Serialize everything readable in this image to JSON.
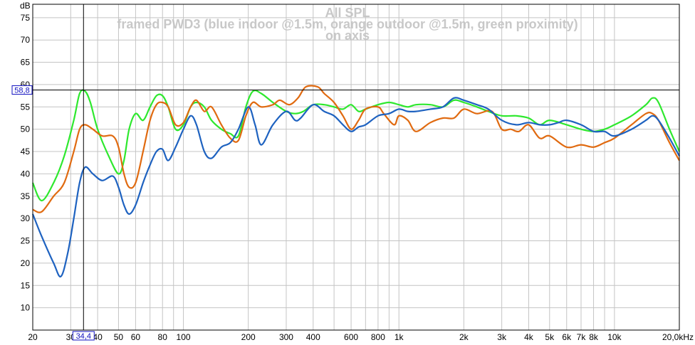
{
  "chart_data": {
    "type": "line",
    "title_lines": [
      "All SPL",
      "framed PWD3 (blue indoor @1.5m, orange outdoor @1.5m, green proximity)",
      "on axis"
    ],
    "y_unit": "dB",
    "x_unit_label": "20,0kHz",
    "x_scale": "log",
    "xlim": [
      20,
      20000
    ],
    "ylim": [
      5,
      78
    ],
    "grid": true,
    "y_ticks": [
      10,
      15,
      20,
      25,
      30,
      35,
      40,
      45,
      50,
      55,
      60,
      65,
      70,
      75
    ],
    "x_tick_labels": [
      {
        "value": 20,
        "label": "20"
      },
      {
        "value": 30,
        "label": "30"
      },
      {
        "value": 40,
        "label": "40"
      },
      {
        "value": 50,
        "label": "50"
      },
      {
        "value": 60,
        "label": "60"
      },
      {
        "value": 80,
        "label": "80"
      },
      {
        "value": 100,
        "label": "100"
      },
      {
        "value": 200,
        "label": "200"
      },
      {
        "value": 300,
        "label": "300"
      },
      {
        "value": 400,
        "label": "400"
      },
      {
        "value": 600,
        "label": "600"
      },
      {
        "value": 800,
        "label": "800"
      },
      {
        "value": 1000,
        "label": "1k"
      },
      {
        "value": 2000,
        "label": "2k"
      },
      {
        "value": 3000,
        "label": "3k"
      },
      {
        "value": 4000,
        "label": "4k"
      },
      {
        "value": 5000,
        "label": "5k"
      },
      {
        "value": 6000,
        "label": "6k"
      },
      {
        "value": 7000,
        "label": "7k"
      },
      {
        "value": 8000,
        "label": "8k"
      },
      {
        "value": 10000,
        "label": "10k"
      }
    ],
    "cursor": {
      "x": 34.4,
      "y": 58.8,
      "x_label": "34,4",
      "y_label": "58,8"
    },
    "series": [
      {
        "color": "#2ee82e",
        "points": [
          [
            20,
            38
          ],
          [
            22,
            34
          ],
          [
            25,
            38
          ],
          [
            28,
            44
          ],
          [
            31,
            52
          ],
          [
            33,
            58
          ],
          [
            35,
            58.5
          ],
          [
            37,
            56
          ],
          [
            40,
            50
          ],
          [
            45,
            44
          ],
          [
            50,
            40
          ],
          [
            53,
            43
          ],
          [
            56,
            50
          ],
          [
            60,
            53.5
          ],
          [
            65,
            52
          ],
          [
            70,
            55
          ],
          [
            75,
            57.5
          ],
          [
            80,
            57.5
          ],
          [
            85,
            55
          ],
          [
            92,
            50
          ],
          [
            100,
            51
          ],
          [
            108,
            55
          ],
          [
            115,
            56
          ],
          [
            125,
            55
          ],
          [
            135,
            52
          ],
          [
            150,
            50
          ],
          [
            165,
            49
          ],
          [
            180,
            48.5
          ],
          [
            195,
            55
          ],
          [
            210,
            58.5
          ],
          [
            230,
            58
          ],
          [
            260,
            56
          ],
          [
            300,
            54
          ],
          [
            330,
            53.5
          ],
          [
            360,
            54
          ],
          [
            400,
            55.5
          ],
          [
            450,
            55.5
          ],
          [
            500,
            55
          ],
          [
            550,
            54.5
          ],
          [
            600,
            55.5
          ],
          [
            650,
            54
          ],
          [
            700,
            54.5
          ],
          [
            800,
            55.5
          ],
          [
            900,
            56
          ],
          [
            1000,
            55.5
          ],
          [
            1100,
            55
          ],
          [
            1200,
            55.5
          ],
          [
            1400,
            55.5
          ],
          [
            1600,
            55
          ],
          [
            1800,
            56.5
          ],
          [
            2000,
            56
          ],
          [
            2300,
            55
          ],
          [
            2600,
            54
          ],
          [
            3000,
            53
          ],
          [
            3500,
            53
          ],
          [
            4000,
            52.5
          ],
          [
            4500,
            51
          ],
          [
            5000,
            52
          ],
          [
            6000,
            51
          ],
          [
            7000,
            50
          ],
          [
            8000,
            49.5
          ],
          [
            9000,
            50
          ],
          [
            10000,
            51
          ],
          [
            12000,
            53
          ],
          [
            14000,
            55.5
          ],
          [
            15000,
            57
          ],
          [
            16000,
            56
          ],
          [
            18000,
            50
          ],
          [
            20000,
            45
          ]
        ]
      },
      {
        "color": "#e06a10",
        "points": [
          [
            20,
            32
          ],
          [
            22,
            31.5
          ],
          [
            25,
            35
          ],
          [
            28,
            38
          ],
          [
            31,
            45
          ],
          [
            33,
            50
          ],
          [
            35,
            51
          ],
          [
            38,
            50
          ],
          [
            42,
            48.5
          ],
          [
            47,
            48.5
          ],
          [
            50,
            46
          ],
          [
            53,
            40
          ],
          [
            56,
            37
          ],
          [
            60,
            38
          ],
          [
            65,
            45
          ],
          [
            70,
            52
          ],
          [
            75,
            55.5
          ],
          [
            80,
            56
          ],
          [
            85,
            55
          ],
          [
            92,
            51
          ],
          [
            100,
            51.5
          ],
          [
            108,
            55
          ],
          [
            115,
            56.5
          ],
          [
            125,
            54
          ],
          [
            135,
            55
          ],
          [
            150,
            51
          ],
          [
            165,
            48
          ],
          [
            180,
            47.5
          ],
          [
            195,
            53
          ],
          [
            210,
            56
          ],
          [
            230,
            55
          ],
          [
            260,
            55.5
          ],
          [
            280,
            56.5
          ],
          [
            310,
            55.5
          ],
          [
            340,
            57
          ],
          [
            370,
            59.5
          ],
          [
            420,
            59.5
          ],
          [
            450,
            58
          ],
          [
            500,
            56
          ],
          [
            550,
            53
          ],
          [
            600,
            50
          ],
          [
            650,
            52
          ],
          [
            700,
            54.5
          ],
          [
            800,
            55
          ],
          [
            850,
            53.5
          ],
          [
            950,
            51
          ],
          [
            1000,
            53
          ],
          [
            1100,
            52
          ],
          [
            1200,
            49.5
          ],
          [
            1400,
            51.5
          ],
          [
            1600,
            52.5
          ],
          [
            1800,
            52.5
          ],
          [
            2000,
            54.5
          ],
          [
            2300,
            53.5
          ],
          [
            2700,
            54
          ],
          [
            3000,
            50
          ],
          [
            3300,
            50
          ],
          [
            3600,
            49.5
          ],
          [
            4000,
            51
          ],
          [
            4500,
            48
          ],
          [
            5000,
            48.5
          ],
          [
            6000,
            46
          ],
          [
            7000,
            46.5
          ],
          [
            8000,
            46
          ],
          [
            9000,
            47
          ],
          [
            10000,
            48
          ],
          [
            12000,
            51
          ],
          [
            14000,
            53.5
          ],
          [
            15000,
            53.5
          ],
          [
            16000,
            52
          ],
          [
            18000,
            47
          ],
          [
            20000,
            43
          ]
        ]
      },
      {
        "color": "#1e62c0",
        "points": [
          [
            20,
            31
          ],
          [
            22,
            26
          ],
          [
            25,
            20
          ],
          [
            27,
            17
          ],
          [
            29,
            22
          ],
          [
            31,
            30
          ],
          [
            33,
            38
          ],
          [
            35,
            41.5
          ],
          [
            38,
            40
          ],
          [
            42,
            38.5
          ],
          [
            47,
            39.5
          ],
          [
            50,
            37
          ],
          [
            53,
            33
          ],
          [
            56,
            31
          ],
          [
            60,
            33
          ],
          [
            65,
            38
          ],
          [
            70,
            42
          ],
          [
            75,
            45
          ],
          [
            80,
            45.5
          ],
          [
            85,
            43
          ],
          [
            92,
            46
          ],
          [
            100,
            50
          ],
          [
            108,
            53
          ],
          [
            115,
            51
          ],
          [
            125,
            45
          ],
          [
            135,
            43.5
          ],
          [
            150,
            46
          ],
          [
            165,
            47
          ],
          [
            180,
            50
          ],
          [
            200,
            55
          ],
          [
            215,
            51
          ],
          [
            230,
            46.5
          ],
          [
            260,
            51
          ],
          [
            300,
            54
          ],
          [
            330,
            52
          ],
          [
            350,
            52.5
          ],
          [
            400,
            55.5
          ],
          [
            450,
            54
          ],
          [
            500,
            53
          ],
          [
            550,
            51
          ],
          [
            600,
            49.5
          ],
          [
            650,
            50.5
          ],
          [
            700,
            51
          ],
          [
            800,
            53
          ],
          [
            900,
            53.5
          ],
          [
            1000,
            54.5
          ],
          [
            1100,
            54
          ],
          [
            1200,
            54
          ],
          [
            1400,
            54.5
          ],
          [
            1600,
            55
          ],
          [
            1800,
            57
          ],
          [
            2000,
            56.5
          ],
          [
            2300,
            55.5
          ],
          [
            2600,
            54.5
          ],
          [
            3000,
            52
          ],
          [
            3500,
            51
          ],
          [
            4000,
            51.5
          ],
          [
            4500,
            51
          ],
          [
            5000,
            51
          ],
          [
            5500,
            51.5
          ],
          [
            6000,
            52
          ],
          [
            7000,
            51
          ],
          [
            8000,
            49.5
          ],
          [
            9000,
            49.5
          ],
          [
            10000,
            48.5
          ],
          [
            12000,
            50
          ],
          [
            14000,
            52
          ],
          [
            15000,
            53
          ],
          [
            16000,
            52
          ],
          [
            18000,
            48
          ],
          [
            20000,
            44
          ]
        ]
      }
    ]
  }
}
